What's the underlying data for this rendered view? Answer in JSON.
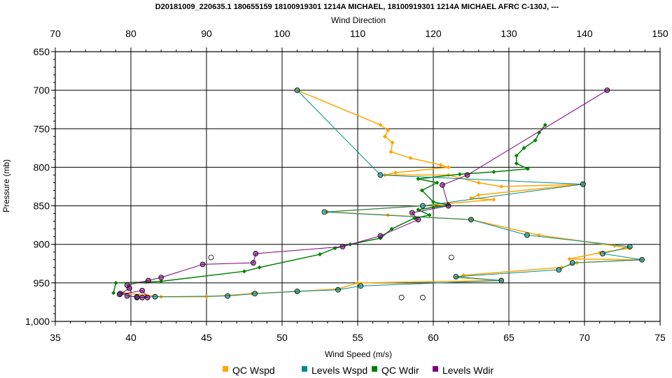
{
  "chart_data": {
    "type": "scatter",
    "title": "D20181009_220635.1 180655159 18100919301 1214A MICHAEL, 18100919301 1214A MICHAEL AFRC C-130J, ---",
    "xlabel": "Wind Speed (m/s)",
    "x2label": "Wind Direction",
    "ylabel": "Pressure (mb)",
    "xlim": [
      35,
      75
    ],
    "x2lim": [
      70,
      150
    ],
    "ylim": [
      1000,
      650
    ],
    "y_inverted": true,
    "grid": true,
    "legend_position": "bottom",
    "x_ticks": [
      "35",
      "40",
      "45",
      "50",
      "55",
      "60",
      "65",
      "70",
      "75"
    ],
    "x2_ticks": [
      "70",
      "80",
      "90",
      "100",
      "110",
      "120",
      "130",
      "140",
      "150"
    ],
    "y_ticks": [
      "650",
      "700",
      "750",
      "800",
      "850",
      "900",
      "950",
      "1,000"
    ],
    "colors": {
      "qc_wspd": "#FFA500",
      "levels_wspd": "#008B8B",
      "qc_wdir": "#008000",
      "levels_wdir": "#800080"
    },
    "series": [
      {
        "name": "QC Wspd",
        "axis": "x",
        "points": [
          [
            51,
            700
          ],
          [
            56.5,
            745
          ],
          [
            57,
            752
          ],
          [
            56.8,
            760
          ],
          [
            57.3,
            768
          ],
          [
            57.2,
            780
          ],
          [
            58.5,
            788
          ],
          [
            60.5,
            797
          ],
          [
            61,
            800
          ],
          [
            57.5,
            807
          ],
          [
            56.8,
            810
          ],
          [
            61,
            810
          ],
          [
            63,
            820
          ],
          [
            64.5,
            825
          ],
          [
            69.9,
            822
          ],
          [
            63,
            836
          ],
          [
            62.5,
            840
          ],
          [
            64,
            842
          ],
          [
            61,
            847
          ],
          [
            60,
            849
          ],
          [
            53,
            858
          ],
          [
            57,
            862
          ],
          [
            62.5,
            868
          ],
          [
            67,
            888
          ],
          [
            72,
            902
          ],
          [
            73,
            905
          ],
          [
            71,
            911
          ],
          [
            69,
            919
          ],
          [
            73.8,
            920
          ],
          [
            69.5,
            924
          ],
          [
            68.5,
            930
          ],
          [
            62,
            940
          ],
          [
            61.5,
            943
          ],
          [
            64.5,
            947
          ],
          [
            55,
            950
          ],
          [
            53.7,
            958
          ],
          [
            51,
            961
          ],
          [
            48,
            964
          ],
          [
            45,
            968
          ],
          [
            42,
            968
          ],
          [
            41,
            966
          ],
          [
            39.5,
            963
          ]
        ]
      },
      {
        "name": "Levels Wspd",
        "axis": "x",
        "points": [
          [
            51,
            700
          ],
          [
            56.5,
            810
          ],
          [
            69.9,
            822
          ],
          [
            59.3,
            850
          ],
          [
            52.8,
            858
          ],
          [
            62.5,
            868
          ],
          [
            66.2,
            888
          ],
          [
            73,
            903
          ],
          [
            71.2,
            912
          ],
          [
            73.8,
            920
          ],
          [
            69.2,
            924
          ],
          [
            68.3,
            933
          ],
          [
            61.5,
            942
          ],
          [
            64.5,
            947
          ],
          [
            55.2,
            954
          ],
          [
            53.7,
            959
          ],
          [
            51,
            961
          ],
          [
            48.2,
            964
          ],
          [
            46.4,
            967
          ],
          [
            41.6,
            968
          ],
          [
            40.4,
            969
          ],
          [
            39.3,
            964
          ]
        ]
      },
      {
        "name": "QC Wdir",
        "axis": "x2",
        "points": [
          [
            134.8,
            745
          ],
          [
            134,
            755
          ],
          [
            133.5,
            765
          ],
          [
            132,
            775
          ],
          [
            131,
            785
          ],
          [
            131,
            795
          ],
          [
            132.5,
            802
          ],
          [
            128,
            806
          ],
          [
            123.5,
            809
          ],
          [
            118,
            815
          ],
          [
            120.5,
            820
          ],
          [
            118.5,
            830
          ],
          [
            120,
            845
          ],
          [
            122,
            849
          ],
          [
            120,
            852
          ],
          [
            118,
            855
          ],
          [
            119.5,
            862
          ],
          [
            117.5,
            866
          ],
          [
            114.5,
            880
          ],
          [
            113,
            892
          ],
          [
            109,
            900
          ],
          [
            107,
            905
          ],
          [
            105,
            913
          ],
          [
            97,
            930
          ],
          [
            95,
            935
          ],
          [
            84,
            948
          ],
          [
            82,
            949
          ],
          [
            78,
            950
          ],
          [
            77.7,
            963
          ]
        ]
      },
      {
        "name": "Levels Wdir",
        "axis": "x2",
        "points": [
          [
            143,
            700
          ],
          [
            124.5,
            810
          ],
          [
            121.2,
            823
          ],
          [
            122,
            850
          ],
          [
            117.2,
            859
          ],
          [
            118,
            868
          ],
          [
            113,
            889
          ],
          [
            108,
            903
          ],
          [
            96.5,
            912
          ],
          [
            96.2,
            924
          ],
          [
            89.5,
            926
          ],
          [
            84,
            943
          ],
          [
            82.3,
            947
          ],
          [
            79.5,
            953
          ],
          [
            79.8,
            957
          ],
          [
            78.5,
            965
          ],
          [
            81.5,
            960
          ],
          [
            82.2,
            969
          ],
          [
            81.5,
            969
          ],
          [
            80.8,
            968
          ],
          [
            79.5,
            967
          ]
        ]
      }
    ]
  },
  "legend": {
    "items": [
      {
        "label": "QC Wspd"
      },
      {
        "label": "Levels Wspd"
      },
      {
        "label": "QC Wdir"
      },
      {
        "label": "Levels Wdir"
      }
    ]
  }
}
